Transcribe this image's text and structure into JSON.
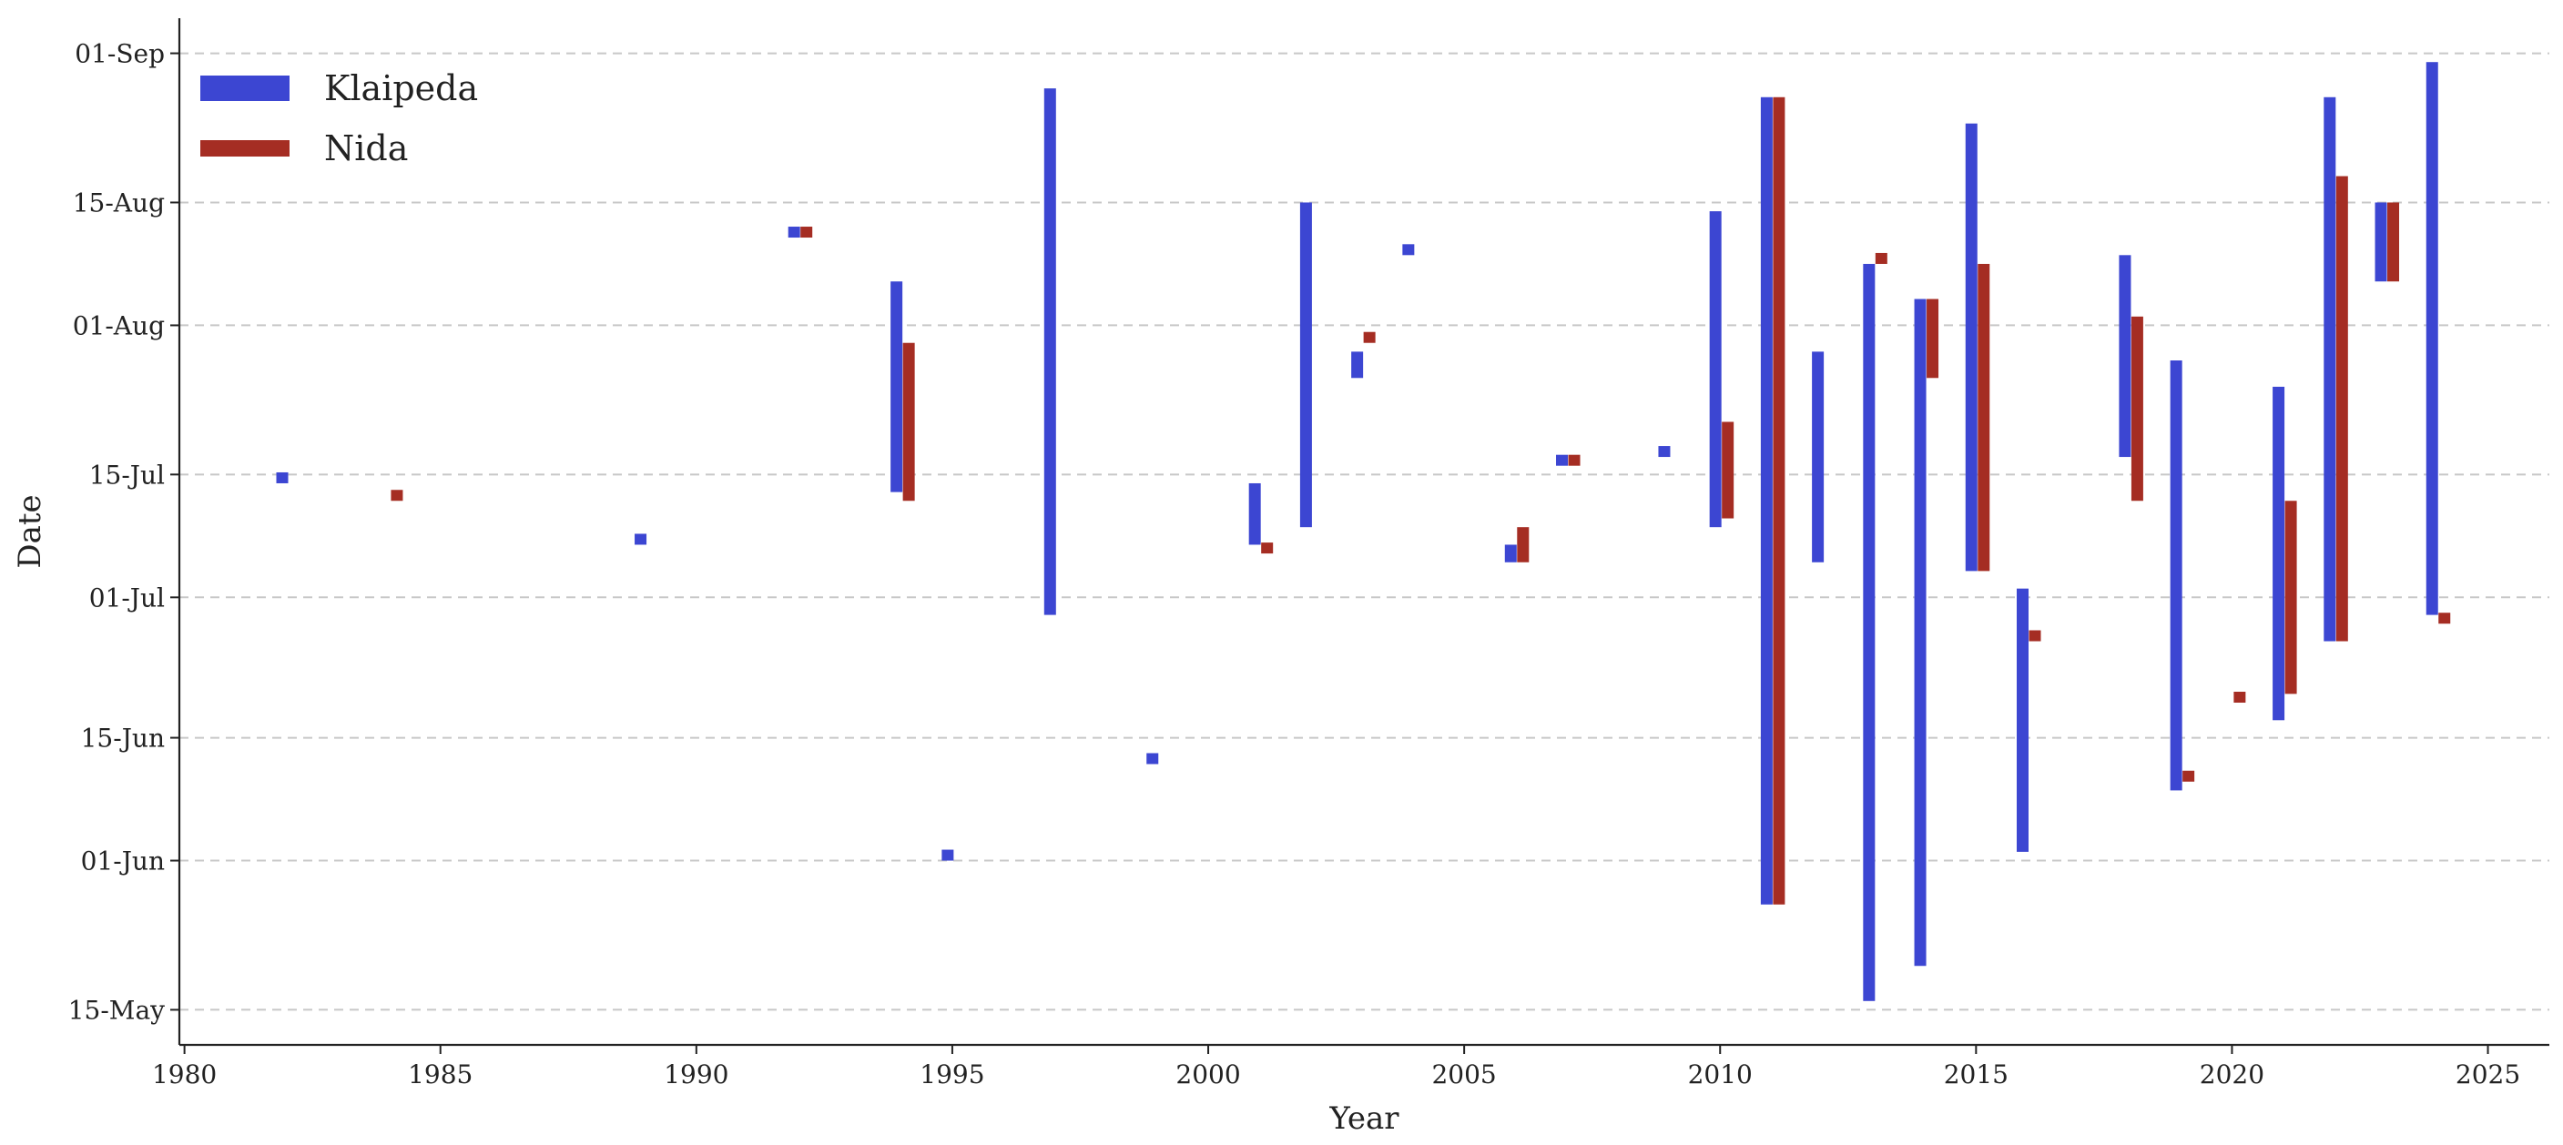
{
  "chart_data": {
    "type": "range-bar",
    "title": "",
    "xlabel": "Year",
    "ylabel": "Date",
    "xlim": [
      1979.9,
      2026.2
    ],
    "xticks": [
      1980,
      1985,
      1990,
      1995,
      2000,
      2005,
      2010,
      2015,
      2020,
      2025
    ],
    "ylim_day_of_year": [
      131,
      248
    ],
    "yticks": [
      {
        "label": "01-Sep",
        "day": 244
      },
      {
        "label": "15-Aug",
        "day": 227
      },
      {
        "label": "01-Aug",
        "day": 213
      },
      {
        "label": "15-Jul",
        "day": 196
      },
      {
        "label": "01-Jul",
        "day": 182
      },
      {
        "label": "15-Jun",
        "day": 166
      },
      {
        "label": "01-Jun",
        "day": 152
      },
      {
        "label": "15-May",
        "day": 135
      }
    ],
    "grid": "horizontal dashed",
    "legend_position": "top-left",
    "series": [
      {
        "name": "Klaipeda",
        "color": "#3c46d2",
        "ranges": [
          {
            "year": 1982,
            "start": "14-Jul",
            "end": "15-Jul"
          },
          {
            "year": 1989,
            "start": "07-Jul",
            "end": "08-Jul"
          },
          {
            "year": 1992,
            "start": "11-Aug",
            "end": "12-Aug"
          },
          {
            "year": 1994,
            "start": "13-Jul",
            "end": "06-Aug"
          },
          {
            "year": 1995,
            "start": "01-Jun",
            "end": "02-Jun"
          },
          {
            "year": 1997,
            "start": "29-Jun",
            "end": "28-Aug"
          },
          {
            "year": 1999,
            "start": "12-Jun",
            "end": "13-Jun"
          },
          {
            "year": 2001,
            "start": "07-Jul",
            "end": "14-Jul"
          },
          {
            "year": 2002,
            "start": "09-Jul",
            "end": "15-Aug"
          },
          {
            "year": 2003,
            "start": "26-Jul",
            "end": "29-Jul"
          },
          {
            "year": 2004,
            "start": "09-Aug",
            "end": "10-Aug"
          },
          {
            "year": 2006,
            "start": "05-Jul",
            "end": "07-Jul"
          },
          {
            "year": 2007,
            "start": "16-Jul",
            "end": "17-Jul"
          },
          {
            "year": 2009,
            "start": "17-Jul",
            "end": "18-Jul"
          },
          {
            "year": 2010,
            "start": "09-Jul",
            "end": "14-Aug"
          },
          {
            "year": 2011,
            "start": "27-May",
            "end": "27-Aug"
          },
          {
            "year": 2012,
            "start": "05-Jul",
            "end": "29-Jul"
          },
          {
            "year": 2013,
            "start": "16-May",
            "end": "08-Aug"
          },
          {
            "year": 2014,
            "start": "20-May",
            "end": "04-Aug"
          },
          {
            "year": 2015,
            "start": "04-Jul",
            "end": "24-Aug"
          },
          {
            "year": 2016,
            "start": "02-Jun",
            "end": "02-Jul"
          },
          {
            "year": 2018,
            "start": "17-Jul",
            "end": "09-Aug"
          },
          {
            "year": 2019,
            "start": "09-Jun",
            "end": "28-Jul"
          },
          {
            "year": 2021,
            "start": "17-Jun",
            "end": "25-Jul"
          },
          {
            "year": 2022,
            "start": "26-Jun",
            "end": "27-Aug"
          },
          {
            "year": 2023,
            "start": "06-Aug",
            "end": "15-Aug"
          },
          {
            "year": 2024,
            "start": "29-Jun",
            "end": "31-Aug"
          }
        ]
      },
      {
        "name": "Nida",
        "color": "#a52d23",
        "ranges": [
          {
            "year": 1984,
            "start": "12-Jul",
            "end": "13-Jul"
          },
          {
            "year": 1992,
            "start": "11-Aug",
            "end": "12-Aug"
          },
          {
            "year": 1994,
            "start": "12-Jul",
            "end": "30-Jul"
          },
          {
            "year": 2001,
            "start": "06-Jul",
            "end": "07-Jul"
          },
          {
            "year": 2003,
            "start": "30-Jul",
            "end": "31-Jul"
          },
          {
            "year": 2006,
            "start": "05-Jul",
            "end": "09-Jul"
          },
          {
            "year": 2007,
            "start": "16-Jul",
            "end": "17-Jul"
          },
          {
            "year": 2010,
            "start": "10-Jul",
            "end": "21-Jul"
          },
          {
            "year": 2011,
            "start": "27-May",
            "end": "27-Aug"
          },
          {
            "year": 2013,
            "start": "08-Aug",
            "end": "09-Aug"
          },
          {
            "year": 2014,
            "start": "26-Jul",
            "end": "04-Aug"
          },
          {
            "year": 2015,
            "start": "04-Jul",
            "end": "08-Aug"
          },
          {
            "year": 2016,
            "start": "26-Jun",
            "end": "27-Jun"
          },
          {
            "year": 2018,
            "start": "12-Jul",
            "end": "02-Aug"
          },
          {
            "year": 2019,
            "start": "10-Jun",
            "end": "11-Jun"
          },
          {
            "year": 2020,
            "start": "19-Jun",
            "end": "20-Jun"
          },
          {
            "year": 2021,
            "start": "20-Jun",
            "end": "12-Jul"
          },
          {
            "year": 2022,
            "start": "26-Jun",
            "end": "18-Aug"
          },
          {
            "year": 2023,
            "start": "06-Aug",
            "end": "15-Aug"
          },
          {
            "year": 2024,
            "start": "28-Jun",
            "end": "29-Jun"
          }
        ]
      }
    ]
  }
}
